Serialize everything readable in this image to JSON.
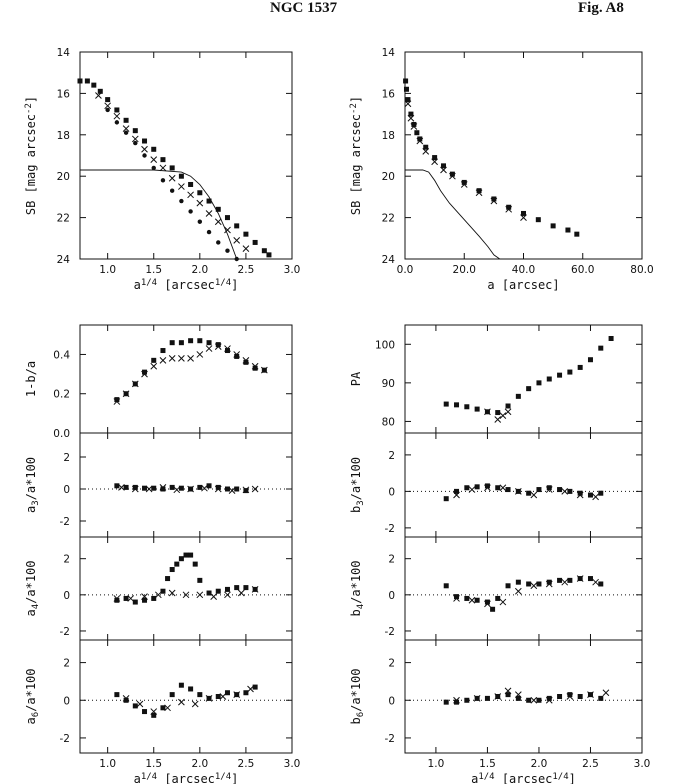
{
  "header": {
    "title": "NGC 1537",
    "figure": "Fig. A8"
  },
  "chart_data": [
    {
      "id": "sb_r14",
      "type": "scatter",
      "xlabel": "a^{1/4} [arcsec^{1/4}]",
      "ylabel": "SB [mag arcsec^{-2}]",
      "xlim": [
        0.7,
        3.0
      ],
      "ylim": [
        24,
        14
      ],
      "y_inverted": true,
      "xticks": [
        "1.0",
        "1.5",
        "2.0",
        "2.5",
        "3.0"
      ],
      "yticks": [
        "14",
        "16",
        "18",
        "20",
        "22",
        "24"
      ],
      "series": [
        {
          "marker": "square",
          "x": [
            0.7,
            0.78,
            0.85,
            0.92,
            1.0,
            1.1,
            1.2,
            1.3,
            1.4,
            1.5,
            1.6,
            1.7,
            1.8,
            1.9,
            2.0,
            2.1,
            2.2,
            2.3,
            2.4,
            2.5,
            2.6,
            2.7,
            2.75
          ],
          "y": [
            15.4,
            15.4,
            15.6,
            15.9,
            16.3,
            16.8,
            17.3,
            17.8,
            18.3,
            18.7,
            19.2,
            19.6,
            20.0,
            20.4,
            20.8,
            21.2,
            21.6,
            22.0,
            22.4,
            22.8,
            23.2,
            23.6,
            23.8
          ]
        },
        {
          "marker": "cross",
          "x": [
            0.9,
            1.0,
            1.1,
            1.2,
            1.3,
            1.4,
            1.5,
            1.6,
            1.7,
            1.8,
            1.9,
            2.0,
            2.1,
            2.2,
            2.3,
            2.4,
            2.5
          ],
          "y": [
            16.1,
            16.6,
            17.1,
            17.7,
            18.2,
            18.7,
            19.2,
            19.6,
            20.1,
            20.5,
            20.9,
            21.3,
            21.8,
            22.2,
            22.6,
            23.1,
            23.5
          ]
        },
        {
          "marker": "dot",
          "x": [
            1.0,
            1.1,
            1.2,
            1.3,
            1.4,
            1.5,
            1.6,
            1.7,
            1.8,
            1.9,
            2.0,
            2.1,
            2.2,
            2.3,
            2.4
          ],
          "y": [
            16.8,
            17.4,
            17.9,
            18.4,
            19.0,
            19.6,
            20.2,
            20.7,
            21.2,
            21.7,
            22.2,
            22.7,
            23.2,
            23.6,
            24.0
          ]
        },
        {
          "marker": "line",
          "x": [
            0.7,
            1.0,
            1.5,
            1.8,
            1.9,
            2.0,
            2.1,
            2.2,
            2.3,
            2.4
          ],
          "y": [
            19.7,
            19.7,
            19.7,
            19.8,
            20.0,
            20.4,
            21.0,
            21.8,
            22.8,
            24.0
          ]
        }
      ]
    },
    {
      "id": "sb_lin",
      "type": "scatter",
      "xlabel": "a [arcsec]",
      "ylabel": "SB [mag arcsec^{-2}]",
      "xlim": [
        0,
        80
      ],
      "ylim": [
        24,
        14
      ],
      "y_inverted": true,
      "xticks": [
        "0.0",
        "20.0",
        "40.0",
        "60.0",
        "80.0"
      ],
      "yticks": [
        "14",
        "16",
        "18",
        "20",
        "22",
        "24"
      ],
      "series": [
        {
          "marker": "square",
          "x": [
            0.2,
            0.5,
            1,
            2,
            3,
            4,
            5,
            7,
            10,
            13,
            16,
            20,
            25,
            30,
            35,
            40,
            45,
            50,
            55,
            58
          ],
          "y": [
            15.4,
            15.8,
            16.3,
            17.0,
            17.5,
            17.9,
            18.2,
            18.6,
            19.1,
            19.5,
            19.9,
            20.3,
            20.7,
            21.1,
            21.5,
            21.8,
            22.1,
            22.4,
            22.6,
            22.8
          ]
        },
        {
          "marker": "cross",
          "x": [
            1,
            2,
            3,
            5,
            7,
            10,
            13,
            16,
            20,
            25,
            30,
            35,
            40
          ],
          "y": [
            16.5,
            17.2,
            17.6,
            18.3,
            18.8,
            19.3,
            19.7,
            20.0,
            20.4,
            20.8,
            21.2,
            21.6,
            22.0
          ]
        },
        {
          "marker": "line",
          "x": [
            0,
            3,
            6,
            8,
            10,
            12,
            15,
            20,
            25,
            28,
            30,
            32
          ],
          "y": [
            19.7,
            19.7,
            19.7,
            19.8,
            20.2,
            20.7,
            21.3,
            22.1,
            22.9,
            23.4,
            23.8,
            24.0
          ]
        }
      ]
    },
    {
      "id": "ellipticity",
      "type": "scatter",
      "ylabel": "1-b/a",
      "xlim": [
        0.7,
        3.0
      ],
      "ylim": [
        0.0,
        0.55
      ],
      "yticks": [
        "0.0",
        "0.2",
        "0.4"
      ],
      "series": [
        {
          "marker": "square",
          "x": [
            1.1,
            1.2,
            1.3,
            1.4,
            1.5,
            1.6,
            1.7,
            1.8,
            1.9,
            2.0,
            2.1,
            2.2,
            2.3,
            2.4,
            2.5,
            2.6,
            2.7
          ],
          "y": [
            0.17,
            0.2,
            0.25,
            0.31,
            0.37,
            0.42,
            0.46,
            0.46,
            0.47,
            0.47,
            0.46,
            0.45,
            0.42,
            0.39,
            0.36,
            0.33,
            0.32
          ]
        },
        {
          "marker": "cross",
          "x": [
            1.1,
            1.2,
            1.3,
            1.4,
            1.5,
            1.6,
            1.7,
            1.8,
            1.9,
            2.0,
            2.1,
            2.2,
            2.3,
            2.4,
            2.5,
            2.6,
            2.7
          ],
          "y": [
            0.16,
            0.2,
            0.25,
            0.3,
            0.34,
            0.37,
            0.38,
            0.38,
            0.38,
            0.4,
            0.43,
            0.44,
            0.43,
            0.4,
            0.37,
            0.34,
            0.32
          ]
        }
      ]
    },
    {
      "id": "pa",
      "type": "scatter",
      "ylabel": "PA",
      "xlim": [
        0.7,
        3.0
      ],
      "ylim": [
        77,
        105
      ],
      "yticks": [
        "80",
        "90",
        "100"
      ],
      "series": [
        {
          "marker": "square",
          "x": [
            1.1,
            1.2,
            1.3,
            1.4,
            1.5,
            1.6,
            1.7,
            1.8,
            1.9,
            2.0,
            2.1,
            2.2,
            2.3,
            2.4,
            2.5,
            2.6,
            2.7
          ],
          "y": [
            84.5,
            84.3,
            83.8,
            83.2,
            82.5,
            82.3,
            84,
            86.5,
            88.5,
            90,
            91,
            92,
            92.8,
            94,
            96,
            99,
            101.5
          ]
        },
        {
          "marker": "cross",
          "x": [
            1.5,
            1.6,
            1.65,
            1.7
          ],
          "y": [
            82.5,
            80.5,
            81.5,
            82.5
          ]
        }
      ]
    },
    {
      "id": "a3",
      "type": "scatter",
      "ylabel": "a_3/a*100",
      "xlim": [
        0.7,
        3.0
      ],
      "ylim": [
        -3,
        3.5
      ],
      "yticks": [
        "-2",
        "0",
        "2"
      ],
      "series": [
        {
          "marker": "square",
          "x": [
            1.1,
            1.2,
            1.3,
            1.4,
            1.5,
            1.6,
            1.7,
            1.8,
            1.9,
            2.0,
            2.1,
            2.2,
            2.3,
            2.4,
            2.5
          ],
          "y": [
            0.2,
            0.1,
            0.1,
            0.05,
            0.05,
            0.0,
            0.1,
            0.05,
            0.0,
            0.1,
            0.2,
            0.1,
            0.0,
            0.0,
            -0.1
          ]
        },
        {
          "marker": "cross",
          "x": [
            1.15,
            1.3,
            1.45,
            1.6,
            1.75,
            1.9,
            2.05,
            2.2,
            2.35,
            2.5,
            2.6
          ],
          "y": [
            0.1,
            0.0,
            0.0,
            0.1,
            -0.05,
            0.0,
            0.05,
            0.0,
            -0.1,
            -0.05,
            0.0
          ]
        }
      ]
    },
    {
      "id": "b3",
      "type": "scatter",
      "ylabel": "b_3/a*100",
      "xlim": [
        0.7,
        3.0
      ],
      "ylim": [
        -2.5,
        3.2
      ],
      "yticks": [
        "-2",
        "0",
        "2"
      ],
      "series": [
        {
          "marker": "square",
          "x": [
            1.1,
            1.2,
            1.3,
            1.4,
            1.5,
            1.6,
            1.7,
            1.8,
            1.9,
            2.0,
            2.1,
            2.2,
            2.3,
            2.4,
            2.5,
            2.6
          ],
          "y": [
            -0.4,
            0.0,
            0.2,
            0.25,
            0.3,
            0.2,
            0.1,
            0.0,
            -0.1,
            0.1,
            0.2,
            0.1,
            0.0,
            -0.1,
            -0.2,
            -0.1
          ]
        },
        {
          "marker": "cross",
          "x": [
            1.2,
            1.35,
            1.5,
            1.65,
            1.8,
            1.95,
            2.1,
            2.25,
            2.4,
            2.55
          ],
          "y": [
            -0.2,
            0.1,
            0.2,
            0.2,
            0.0,
            -0.2,
            0.1,
            0.0,
            -0.2,
            -0.3
          ]
        }
      ]
    },
    {
      "id": "a4",
      "type": "scatter",
      "ylabel": "a_4/a*100",
      "xlim": [
        0.7,
        3.0
      ],
      "ylim": [
        -2.5,
        3.2
      ],
      "yticks": [
        "-2",
        "0",
        "2"
      ],
      "series": [
        {
          "marker": "square",
          "x": [
            1.1,
            1.2,
            1.3,
            1.4,
            1.5,
            1.6,
            1.65,
            1.7,
            1.75,
            1.8,
            1.85,
            1.9,
            1.95,
            2.0,
            2.1,
            2.2,
            2.3,
            2.4,
            2.5,
            2.6
          ],
          "y": [
            -0.3,
            -0.2,
            -0.4,
            -0.3,
            -0.2,
            0.2,
            0.9,
            1.4,
            1.7,
            2.0,
            2.2,
            2.2,
            1.7,
            0.8,
            0.1,
            0.2,
            0.3,
            0.4,
            0.4,
            0.3
          ]
        },
        {
          "marker": "cross",
          "x": [
            1.1,
            1.25,
            1.4,
            1.55,
            1.7,
            1.85,
            2.0,
            2.15,
            2.3,
            2.45,
            2.6
          ],
          "y": [
            -0.2,
            -0.2,
            -0.1,
            0.0,
            0.1,
            0.0,
            0.0,
            -0.1,
            0.0,
            0.1,
            0.3
          ]
        }
      ]
    },
    {
      "id": "b4",
      "type": "scatter",
      "ylabel": "b_4/a*100",
      "xlim": [
        0.7,
        3.0
      ],
      "ylim": [
        -2.5,
        3.2
      ],
      "yticks": [
        "-2",
        "0",
        "2"
      ],
      "series": [
        {
          "marker": "square",
          "x": [
            1.1,
            1.2,
            1.3,
            1.4,
            1.5,
            1.55,
            1.6,
            1.7,
            1.8,
            1.9,
            2.0,
            2.1,
            2.2,
            2.3,
            2.4,
            2.5,
            2.6
          ],
          "y": [
            0.5,
            -0.1,
            -0.2,
            -0.3,
            -0.4,
            -0.8,
            -0.2,
            0.5,
            0.7,
            0.6,
            0.6,
            0.7,
            0.8,
            0.8,
            0.9,
            0.9,
            0.6
          ]
        },
        {
          "marker": "cross",
          "x": [
            1.2,
            1.35,
            1.5,
            1.65,
            1.8,
            1.95,
            2.1,
            2.25,
            2.4,
            2.55
          ],
          "y": [
            -0.2,
            -0.3,
            -0.5,
            -0.4,
            0.2,
            0.5,
            0.6,
            0.7,
            0.9,
            0.7
          ]
        }
      ]
    },
    {
      "id": "a6",
      "type": "scatter",
      "ylabel": "a_6/a*100",
      "xlim": [
        0.7,
        3.0
      ],
      "ylim": [
        -2.8,
        3.2
      ],
      "yticks": [
        "-2",
        "0",
        "2"
      ],
      "xlabel": "a^{1/4} [arcsec^{1/4}]",
      "xticks": [
        "1.0",
        "1.5",
        "2.0",
        "2.5",
        "3.0"
      ],
      "series": [
        {
          "marker": "square",
          "x": [
            1.1,
            1.2,
            1.3,
            1.4,
            1.5,
            1.6,
            1.7,
            1.8,
            1.9,
            2.0,
            2.1,
            2.2,
            2.3,
            2.4,
            2.5,
            2.6
          ],
          "y": [
            0.3,
            0.0,
            -0.3,
            -0.6,
            -0.8,
            -0.4,
            0.3,
            0.8,
            0.6,
            0.3,
            0.1,
            0.2,
            0.4,
            0.3,
            0.4,
            0.7
          ]
        },
        {
          "marker": "cross",
          "x": [
            1.2,
            1.35,
            1.5,
            1.65,
            1.8,
            1.95,
            2.1,
            2.25,
            2.4,
            2.55
          ],
          "y": [
            0.1,
            -0.2,
            -0.6,
            -0.4,
            -0.1,
            -0.2,
            0.1,
            0.2,
            0.3,
            0.6
          ]
        }
      ]
    },
    {
      "id": "b6",
      "type": "scatter",
      "ylabel": "b_6/a*100",
      "xlim": [
        0.7,
        3.0
      ],
      "ylim": [
        -2.8,
        3.2
      ],
      "yticks": [
        "-2",
        "0",
        "2"
      ],
      "xlabel": "a^{1/4} [arcsec^{1/4}]",
      "xticks": [
        "1.0",
        "1.5",
        "2.0",
        "2.5",
        "3.0"
      ],
      "series": [
        {
          "marker": "square",
          "x": [
            1.1,
            1.2,
            1.3,
            1.4,
            1.5,
            1.6,
            1.7,
            1.8,
            1.9,
            2.0,
            2.1,
            2.2,
            2.3,
            2.4,
            2.5,
            2.6
          ],
          "y": [
            -0.1,
            -0.1,
            0.0,
            0.1,
            0.1,
            0.2,
            0.3,
            0.1,
            0.0,
            0.0,
            0.1,
            0.2,
            0.3,
            0.2,
            0.3,
            0.1
          ]
        },
        {
          "marker": "cross",
          "x": [
            1.2,
            1.4,
            1.6,
            1.7,
            1.8,
            1.95,
            2.1,
            2.3,
            2.5,
            2.65
          ],
          "y": [
            0.0,
            0.1,
            0.2,
            0.5,
            0.3,
            0.0,
            0.0,
            0.2,
            0.3,
            0.4
          ]
        }
      ]
    }
  ]
}
